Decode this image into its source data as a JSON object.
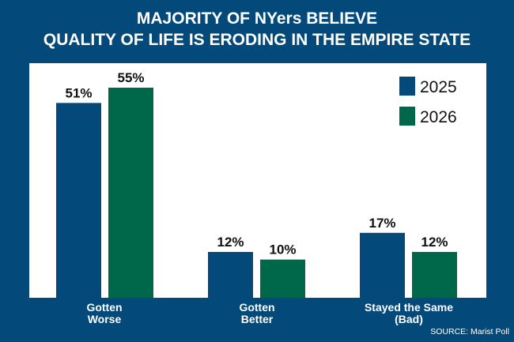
{
  "chart_data": {
    "type": "bar",
    "title": [
      "MAJORITY OF NYers BELIEVE",
      "QUALITY OF LIFE IS ERODING IN THE EMPIRE STATE"
    ],
    "categories": [
      "Gotten Worse",
      "Gotten Better",
      "Stayed the Same (Bad)"
    ],
    "category_lines": [
      [
        "Gotten",
        "Worse"
      ],
      [
        "Gotten",
        "Better"
      ],
      [
        "Stayed the Same",
        "(Bad)"
      ]
    ],
    "series": [
      {
        "name": "2025",
        "color": "#034a7b",
        "values": [
          51,
          12,
          17
        ],
        "labels": [
          "51%",
          "12%",
          "17%"
        ]
      },
      {
        "name": "2026",
        "color": "#00684a",
        "values": [
          55,
          10,
          12
        ],
        "labels": [
          "55%",
          "10%",
          "12%"
        ]
      }
    ],
    "ylim": [
      0,
      61
    ],
    "legend": "top-right",
    "grid": false,
    "source": "SOURCE: Marist Poll"
  }
}
